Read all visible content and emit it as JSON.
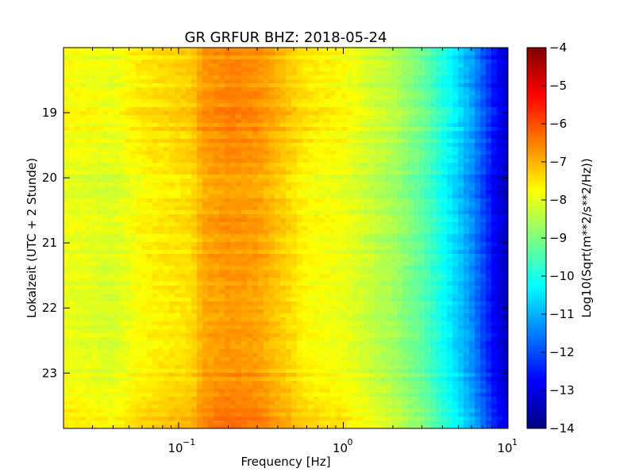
{
  "chart_data": {
    "type": "heatmap",
    "title": "GR GRFUR BHZ: 2018-05-24",
    "xlabel": "Frequency [Hz]",
    "ylabel": "Lokalzeit (UTC + 2 Stunde)",
    "x_scale": "log",
    "xlim": [
      0.02,
      10
    ],
    "ylim": [
      18.0,
      23.85
    ],
    "y_inverted": true,
    "x_tick_values": [
      0.1,
      1,
      10
    ],
    "x_tick_labels": [
      "10",
      "10",
      "10"
    ],
    "x_tick_exponents": [
      "−1",
      "0",
      "1"
    ],
    "y_tick_values": [
      19,
      20,
      21,
      22,
      23
    ],
    "y_tick_labels": [
      "19",
      "20",
      "21",
      "22",
      "23"
    ],
    "colorbar": {
      "label": "Log10(Sqrt(m**2/s**2/Hz))",
      "vmin": -14,
      "vmax": -4,
      "tick_values": [
        -4,
        -5,
        -6,
        -7,
        -8,
        -9,
        -10,
        -11,
        -12,
        -13,
        -14
      ],
      "tick_labels": [
        "−4",
        "−5",
        "−6",
        "−7",
        "−8",
        "−9",
        "−10",
        "−11",
        "−12",
        "−13",
        "−14"
      ],
      "colormap": "jet",
      "colors": [
        "#00007f",
        "#0000ff",
        "#007fff",
        "#00ffff",
        "#7fff7f",
        "#ffff00",
        "#ff7f00",
        "#ff0000",
        "#7f0000"
      ]
    },
    "spectral_profile": {
      "frequency_hz": [
        0.02,
        0.04,
        0.06,
        0.09,
        0.12,
        0.14,
        0.2,
        0.3,
        0.45,
        0.6,
        1,
        2,
        3,
        4.5,
        6,
        8,
        10
      ],
      "log10_amplitude": [
        -7.9,
        -8.1,
        -7.7,
        -7.5,
        -7.4,
        -6.9,
        -6.7,
        -6.8,
        -7.3,
        -7.7,
        -7.9,
        -8.6,
        -9.3,
        -10.4,
        -11.3,
        -12.6,
        -13.5
      ]
    },
    "time_hours": [
      18.0,
      18.5,
      19.0,
      19.5,
      20.0,
      20.5,
      21.0,
      21.5,
      22.0,
      22.5,
      23.0,
      23.5,
      23.85
    ],
    "row_offset_log10": [
      0.1,
      0.0,
      0.25,
      0.1,
      -0.1,
      0.0,
      -0.05,
      0.0,
      -0.1,
      0.0,
      0.05,
      0.3,
      0.45
    ],
    "grid": false,
    "legend": "colorbar-right"
  }
}
